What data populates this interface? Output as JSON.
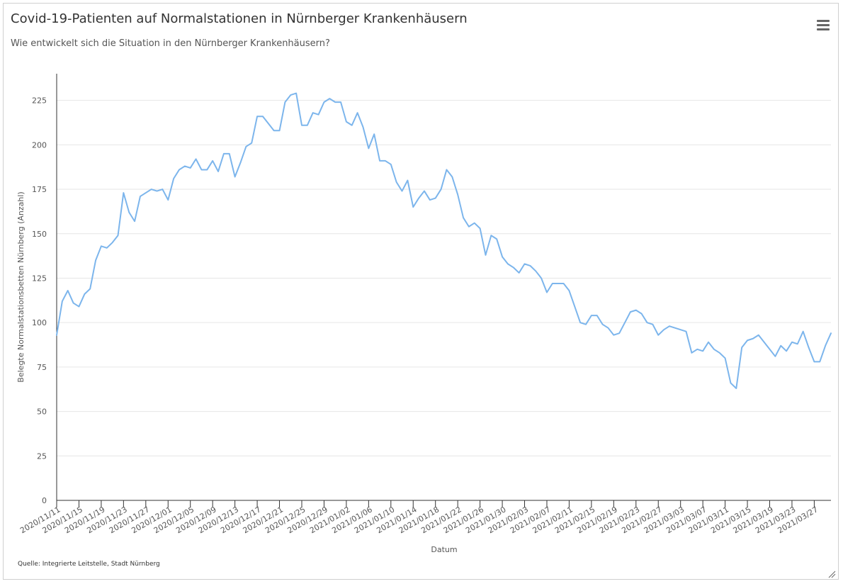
{
  "header": {
    "title": "Covid-19-Patienten auf Normalstationen in Nürnberger Krankenhäusern",
    "subtitle": "Wie entwickelt sich die Situation in den Nürnberger Krankenhäusern?",
    "menu_icon": "hamburger-menu-icon"
  },
  "footer": {
    "credits": "Quelle: Integrierte Leitstelle, Stadt Nürnberg"
  },
  "chart_data": {
    "type": "line",
    "title": "Covid-19-Patienten auf Normalstationen in Nürnberger Krankenhäusern",
    "subtitle": "Wie entwickelt sich die Situation in den Nürnberger Krankenhäusern?",
    "xlabel": "Datum",
    "ylabel": "Belegte Normalstationsbetten Nürnberg (Anzahl)",
    "x_start": "2020/11/11",
    "ylim": [
      0,
      240
    ],
    "yticks": [
      0,
      25,
      50,
      75,
      100,
      125,
      150,
      175,
      200,
      225
    ],
    "xtick_labels": [
      "2020/11/11",
      "2020/11/15",
      "2020/11/19",
      "2020/11/23",
      "2020/11/27",
      "2020/12/01",
      "2020/12/05",
      "2020/12/09",
      "2020/12/13",
      "2020/12/17",
      "2020/12/21",
      "2020/12/25",
      "2020/12/29",
      "2021/01/02",
      "2021/01/06",
      "2021/01/10",
      "2021/01/14",
      "2021/01/18",
      "2021/01/22",
      "2021/01/26",
      "2021/01/30",
      "2021/02/03",
      "2021/02/07",
      "2021/02/11",
      "2021/02/15",
      "2021/02/19",
      "2021/02/23",
      "2021/02/27",
      "2021/03/03",
      "2021/03/07",
      "2021/03/11",
      "2021/03/15",
      "2021/03/19",
      "2021/03/23",
      "2021/03/27"
    ],
    "grid": true,
    "line_color": "#7cb5ec",
    "series": [
      {
        "values": [
          93,
          112,
          118,
          111,
          109,
          116,
          119,
          135,
          143,
          142,
          145,
          149,
          173,
          162,
          157,
          171,
          173,
          175,
          174,
          175,
          169,
          181,
          186,
          188,
          187,
          192,
          186,
          186,
          191,
          185,
          195,
          195,
          182,
          190,
          199,
          201,
          216,
          216,
          212,
          208,
          208,
          224,
          228,
          229,
          211,
          211,
          218,
          217,
          224,
          226,
          224,
          224,
          213,
          211,
          218,
          210,
          198,
          206,
          191,
          191,
          189,
          179,
          174,
          180,
          165,
          170,
          174,
          169,
          170,
          175,
          186,
          182,
          172,
          159,
          154,
          156,
          153,
          138,
          149,
          147,
          137,
          133,
          131,
          128,
          133,
          132,
          129,
          125,
          117,
          122,
          122,
          122,
          118,
          109,
          100,
          99,
          104,
          104,
          99,
          97,
          93,
          94,
          100,
          106,
          107,
          105,
          100,
          99,
          93,
          96,
          98,
          97,
          96,
          95,
          83,
          85,
          84,
          89,
          85,
          83,
          80,
          66,
          63,
          86,
          90,
          91,
          93,
          89,
          85,
          81,
          87,
          84,
          89,
          88,
          95,
          86,
          78,
          78,
          87,
          94
        ]
      }
    ]
  }
}
